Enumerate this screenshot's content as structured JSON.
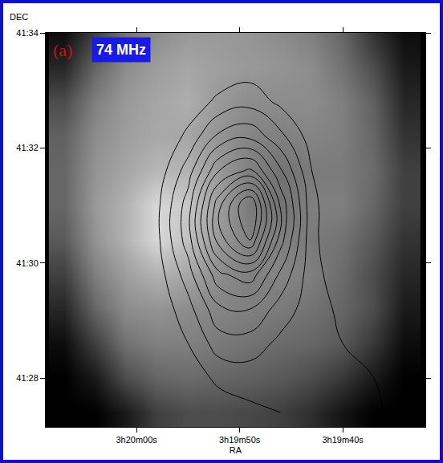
{
  "chart_data": {
    "type": "contour",
    "title": "74 MHz",
    "panel_label": "(a)",
    "x_label": "RA",
    "y_label": "DEC",
    "xlim": [
      68.8,
      32.0
    ],
    "xticks": [
      {
        "value": 60,
        "label": "3h20m00s"
      },
      {
        "value": 50,
        "label": "3h19m50s"
      },
      {
        "value": 40,
        "label": "3h19m40s"
      }
    ],
    "ylim": [
      27.15,
      34
    ],
    "yticks": [
      {
        "value": 28,
        "label": "41:28"
      },
      {
        "value": 30,
        "label": "41:30"
      },
      {
        "value": 32,
        "label": "41:32"
      },
      {
        "value": 34,
        "label": "41:34"
      }
    ],
    "x": [
      67,
      64,
      61,
      58,
      55,
      52,
      49,
      46,
      43,
      40,
      37,
      34
    ],
    "y": [
      27.4,
      28.0,
      28.6,
      29.2,
      29.8,
      30.4,
      31.0,
      31.6,
      32.2,
      32.8,
      33.4,
      34.0
    ],
    "image": {
      "zlim": [
        0,
        100
      ],
      "z": [
        [
          0,
          0,
          10,
          25,
          30,
          30,
          28,
          25,
          18,
          8,
          0,
          0
        ],
        [
          0,
          10,
          30,
          40,
          42,
          40,
          38,
          35,
          30,
          22,
          10,
          0
        ],
        [
          5,
          25,
          45,
          50,
          50,
          48,
          45,
          42,
          40,
          35,
          22,
          5
        ],
        [
          15,
          40,
          55,
          58,
          55,
          52,
          50,
          48,
          45,
          40,
          30,
          10
        ],
        [
          25,
          50,
          62,
          70,
          65,
          55,
          50,
          52,
          50,
          42,
          30,
          15
        ],
        [
          35,
          58,
          70,
          85,
          75,
          60,
          50,
          50,
          48,
          45,
          35,
          20
        ],
        [
          40,
          60,
          70,
          85,
          78,
          62,
          48,
          45,
          50,
          50,
          40,
          25
        ],
        [
          40,
          58,
          65,
          72,
          70,
          60,
          50,
          45,
          48,
          48,
          42,
          25
        ],
        [
          38,
          55,
          62,
          66,
          65,
          58,
          52,
          50,
          52,
          50,
          40,
          20
        ],
        [
          30,
          50,
          60,
          65,
          68,
          60,
          55,
          55,
          55,
          50,
          38,
          15
        ],
        [
          15,
          40,
          55,
          62,
          65,
          62,
          60,
          58,
          55,
          45,
          30,
          10
        ],
        [
          5,
          25,
          45,
          55,
          60,
          60,
          58,
          55,
          50,
          40,
          20,
          5
        ]
      ]
    },
    "radio": {
      "levels": [
        10,
        18,
        26,
        34,
        42,
        50,
        58,
        66,
        74,
        82,
        90
      ],
      "color": "#000000",
      "z": [
        [
          0,
          0,
          0,
          0,
          0,
          5,
          8,
          10,
          12,
          12,
          12,
          5
        ],
        [
          0,
          0,
          0,
          0,
          5,
          12,
          14,
          14,
          14,
          13,
          10,
          3
        ],
        [
          0,
          0,
          0,
          2,
          10,
          22,
          22,
          16,
          14,
          10,
          5,
          0
        ],
        [
          0,
          0,
          0,
          4,
          15,
          32,
          34,
          22,
          14,
          8,
          3,
          0
        ],
        [
          0,
          0,
          0,
          6,
          22,
          48,
          55,
          32,
          13,
          5,
          0,
          0
        ],
        [
          0,
          0,
          0,
          8,
          30,
          70,
          90,
          45,
          12,
          3,
          0,
          0
        ],
        [
          0,
          0,
          0,
          8,
          30,
          72,
          100,
          48,
          12,
          3,
          0,
          0
        ],
        [
          0,
          0,
          0,
          5,
          22,
          50,
          60,
          35,
          10,
          2,
          0,
          0
        ],
        [
          0,
          0,
          0,
          2,
          12,
          28,
          32,
          20,
          6,
          0,
          0,
          0
        ],
        [
          0,
          0,
          0,
          0,
          5,
          12,
          15,
          8,
          2,
          0,
          0,
          0
        ],
        [
          0,
          0,
          0,
          0,
          0,
          4,
          6,
          2,
          0,
          0,
          0,
          0
        ],
        [
          0,
          0,
          0,
          0,
          0,
          0,
          0,
          0,
          0,
          0,
          0,
          0
        ]
      ]
    }
  }
}
